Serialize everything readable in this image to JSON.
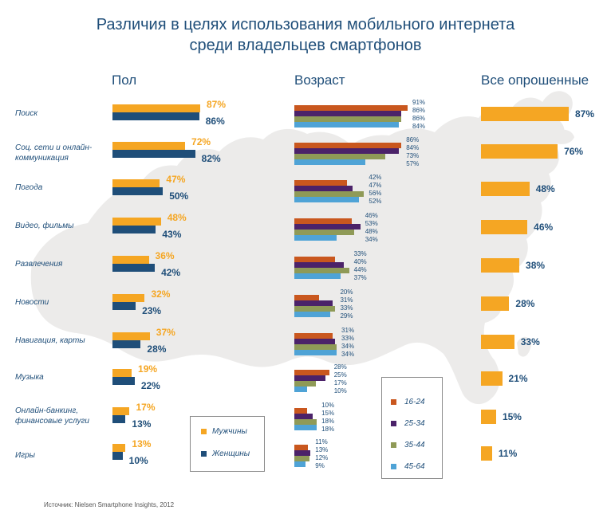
{
  "title": {
    "line1": "Различия в целях использования мобильного интернета",
    "line2": "среди владельцев смартфонов"
  },
  "sections": {
    "gender": "Пол",
    "age": "Возраст",
    "all": "Все опрошенные"
  },
  "colors": {
    "men": "#f5a623",
    "women": "#1f4e79",
    "age_16_24": "#c9571e",
    "age_25_34": "#4b2269",
    "age_35_44": "#8f9a57",
    "age_45_64": "#4fa3d6",
    "all": "#f5a623",
    "map": "#ecebea"
  },
  "legend_gender": [
    {
      "label": "Мужчины",
      "color": "#f5a623"
    },
    {
      "label": "Женщины",
      "color": "#1f4e79"
    }
  ],
  "legend_age": [
    {
      "label": "16-24",
      "color": "#c9571e"
    },
    {
      "label": "25-34",
      "color": "#4b2269"
    },
    {
      "label": "35-44",
      "color": "#8f9a57"
    },
    {
      "label": "45-64",
      "color": "#4fa3d6"
    }
  ],
  "source": "Источник: Nielsen Smartphone Insights, 2012",
  "chart_data": [
    {
      "type": "bar",
      "title": "Пол",
      "categories": [
        "Поиск",
        "Соц. сети и онлайн-коммуникация",
        "Погода",
        "Видео, фильмы",
        "Развлечения",
        "Новости",
        "Навигация, карты",
        "Музыка",
        "Онлайн-банкинг, финансовые услуги",
        "Игры"
      ],
      "series": [
        {
          "name": "Мужчины",
          "values": [
            87,
            72,
            47,
            48,
            36,
            32,
            37,
            19,
            17,
            13
          ],
          "labels": [
            "87%",
            "72%",
            "47%",
            "48%",
            "36%",
            "32%",
            "37%",
            "19%",
            "17%",
            "13%"
          ]
        },
        {
          "name": "Женщины",
          "values": [
            86,
            82,
            50,
            43,
            42,
            23,
            28,
            22,
            13,
            10
          ],
          "labels": [
            "86%",
            "82%",
            "50%",
            "43%",
            "42%",
            "23%",
            "28%",
            "22%",
            "13%",
            "10%"
          ]
        }
      ],
      "xlim": [
        0,
        100
      ]
    },
    {
      "type": "bar",
      "title": "Возраст",
      "categories": [
        "Поиск",
        "Соц. сети и онлайн-коммуникация",
        "Погода",
        "Видео, фильмы",
        "Развлечения",
        "Новости",
        "Навигация, карты",
        "Музыка",
        "Онлайн-банкинг, финансовые услуги",
        "Игры"
      ],
      "series": [
        {
          "name": "16-24",
          "values": [
            91,
            86,
            42,
            46,
            33,
            20,
            31,
            28,
            10,
            11
          ],
          "labels": [
            "91%",
            "86%",
            "42%",
            "46%",
            "33%",
            "20%",
            "31%",
            "28%",
            "10%",
            "11%"
          ]
        },
        {
          "name": "25-34",
          "values": [
            86,
            84,
            47,
            53,
            40,
            31,
            33,
            25,
            15,
            13
          ],
          "labels": [
            "86%",
            "84%",
            "47%",
            "53%",
            "40%",
            "31%",
            "33%",
            "25%",
            "15%",
            "13%"
          ]
        },
        {
          "name": "35-44",
          "values": [
            86,
            73,
            56,
            48,
            44,
            33,
            34,
            17,
            18,
            12
          ],
          "labels": [
            "86%",
            "73%",
            "56%",
            "48%",
            "44%",
            "33%",
            "34%",
            "17%",
            "18%",
            "12%"
          ]
        },
        {
          "name": "45-64",
          "values": [
            84,
            57,
            52,
            34,
            37,
            29,
            34,
            10,
            18,
            9
          ],
          "labels": [
            "84%",
            "57%",
            "52%",
            "34%",
            "37%",
            "29%",
            "34%",
            "10%",
            "18%",
            "9%"
          ]
        }
      ],
      "xlim": [
        0,
        100
      ]
    },
    {
      "type": "bar",
      "title": "Все опрошенные",
      "categories": [
        "Поиск",
        "Соц. сети и онлайн-коммуникация",
        "Погода",
        "Видео, фильмы",
        "Развлечения",
        "Новости",
        "Навигация, карты",
        "Музыка",
        "Онлайн-банкинг, финансовые услуги",
        "Игры"
      ],
      "series": [
        {
          "name": "Все опрошенные",
          "values": [
            87,
            76,
            48,
            46,
            38,
            28,
            33,
            21,
            15,
            11
          ],
          "labels": [
            "87%",
            "76%",
            "48%",
            "46%",
            "38%",
            "28%",
            "33%",
            "21%",
            "15%",
            "11%"
          ]
        }
      ],
      "xlim": [
        0,
        100
      ]
    }
  ]
}
